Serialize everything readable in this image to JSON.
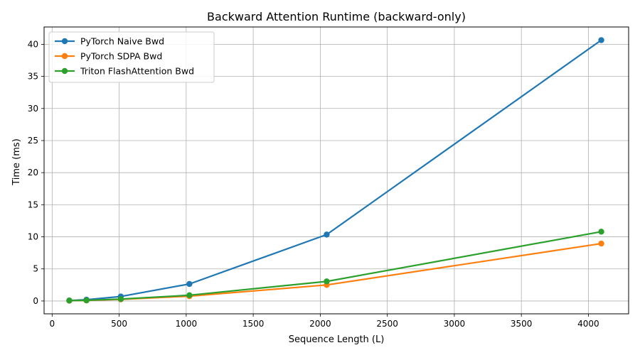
{
  "chart_data": {
    "type": "line",
    "title": "Backward Attention Runtime (backward-only)",
    "xlabel": "Sequence Length (L)",
    "ylabel": "Time (ms)",
    "xlim": [
      -60,
      4300
    ],
    "ylim": [
      -2.0,
      42.7
    ],
    "xticks": [
      0,
      500,
      1000,
      1500,
      2000,
      2500,
      3000,
      3500,
      4000
    ],
    "yticks": [
      0,
      5,
      10,
      15,
      20,
      25,
      30,
      35,
      40
    ],
    "grid": true,
    "legend_position": "top-left",
    "x": [
      128,
      256,
      512,
      1024,
      2048,
      4096
    ],
    "series": [
      {
        "name": "PyTorch Naive Bwd",
        "color": "#1f77b4",
        "values": [
          0.08,
          0.2,
          0.7,
          2.65,
          10.35,
          40.65
        ]
      },
      {
        "name": "PyTorch SDPA Bwd",
        "color": "#ff7f0e",
        "values": [
          0.05,
          0.08,
          0.25,
          0.75,
          2.5,
          8.95
        ]
      },
      {
        "name": "Triton FlashAttention Bwd",
        "color": "#2ca02c",
        "values": [
          0.06,
          0.1,
          0.3,
          0.9,
          3.05,
          10.8
        ]
      }
    ]
  }
}
